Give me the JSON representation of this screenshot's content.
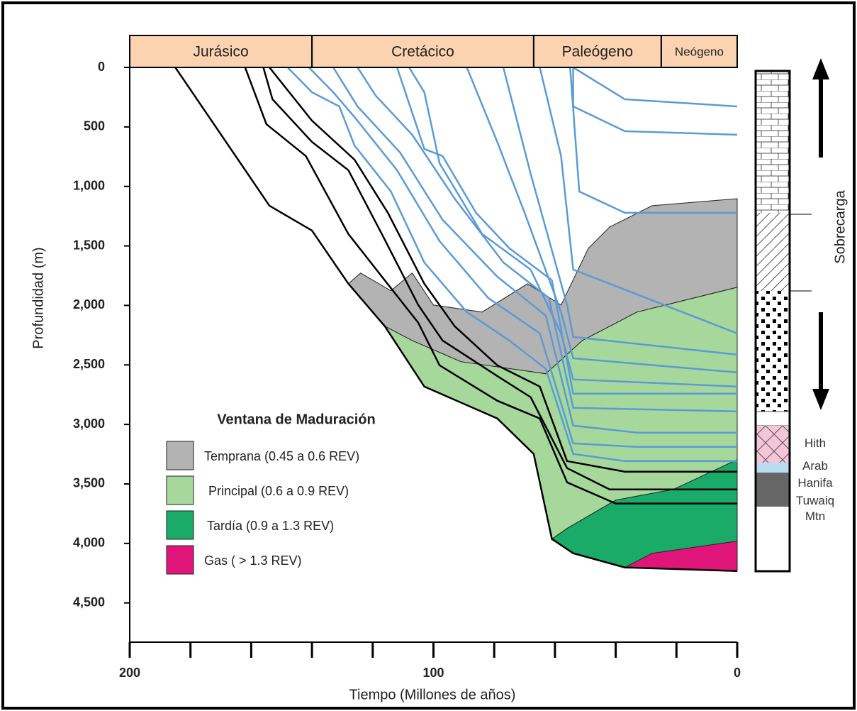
{
  "chart_data": {
    "type": "burial",
    "x_label": "Tiempo (Millones de años)",
    "y_label": "Profundidad (m)",
    "xlim": [
      200,
      0
    ],
    "xticks": [
      200,
      100,
      0
    ],
    "xminor_ticks": [
      180,
      160,
      140,
      120,
      80,
      60,
      40,
      20
    ],
    "ylim": [
      0,
      4830
    ],
    "yticks": [
      0,
      500,
      {
        "value": 1000,
        "label": "1,000"
      },
      {
        "value": 1500,
        "label": "1,500"
      },
      {
        "value": 2000,
        "label": "2,000"
      },
      {
        "value": 2500,
        "label": "2,500"
      },
      {
        "value": 3000,
        "label": "3,000"
      },
      {
        "value": 3500,
        "label": "3,500"
      },
      {
        "value": 4000,
        "label": "4,000"
      },
      {
        "value": 4500,
        "label": "4,500"
      }
    ],
    "periods": [
      {
        "name": "Jurásico",
        "start": 200,
        "end": 140
      },
      {
        "name": "Cretácico",
        "start": 140,
        "end": 67
      },
      {
        "name": "Paleógeno",
        "start": 67,
        "end": 25
      },
      {
        "name": "Neógeno",
        "start": 25,
        "end": 0
      }
    ],
    "regions": [
      {
        "name": "Temprana (0.45 a 0.6 REV)",
        "color": "#b3b3b3",
        "x": [
          128,
          124,
          114,
          107,
          100,
          84,
          69,
          58,
          49,
          42,
          28,
          0,
          0,
          33,
          51,
          63,
          91,
          107,
          116
        ],
        "y": [
          1818,
          1728,
          1877,
          1728,
          1997,
          2056,
          1818,
          1997,
          1520,
          1341,
          1162,
          1103,
          1848,
          2056,
          2295,
          2575,
          2473,
          2295,
          2175
        ]
      },
      {
        "name": "Principal (0.6 a 0.9 REV)",
        "color": "#a6d89b",
        "x": [
          107,
          91,
          63,
          51,
          33,
          0,
          0,
          21,
          40,
          56,
          61,
          67,
          79,
          103,
          116
        ],
        "y": [
          2295,
          2473,
          2575,
          2295,
          2056,
          1848,
          3308,
          3546,
          3636,
          3874,
          3963,
          3248,
          2950,
          2682,
          2175
        ]
      },
      {
        "name": "Tardía (0.9 a 1.3 REV)",
        "color": "#1aab68",
        "x": [
          61,
          56,
          40,
          21,
          0,
          0,
          19,
          28,
          37,
          54
        ],
        "y": [
          3963,
          3874,
          3636,
          3546,
          3296,
          3993,
          4053,
          4142,
          4202,
          4083
        ]
      },
      {
        "name": "Gas ( > 1.3 REV)",
        "color": "#e0157a",
        "x": [
          37,
          28,
          0,
          0
        ],
        "y": [
          4202,
          4083,
          3981,
          4232
        ]
      }
    ],
    "lines": [
      {
        "color": "#5b9bd5",
        "x": [
          148,
          140,
          131,
          126,
          114,
          103,
          89,
          75,
          63,
          54,
          37,
          0
        ],
        "y": [
          0,
          209,
          328,
          656,
          1043,
          1639,
          2056,
          2295,
          2533,
          3248,
          3308,
          3308
        ]
      },
      {
        "color": "#5b9bd5",
        "x": [
          141,
          133,
          126,
          112,
          98,
          82,
          65,
          54,
          33,
          0
        ],
        "y": [
          0,
          209,
          417,
          864,
          1460,
          1937,
          2235,
          3159,
          3189,
          3189
        ]
      },
      {
        "color": "#5b9bd5",
        "x": [
          133,
          125,
          111,
          97,
          79,
          63,
          54,
          33,
          0
        ],
        "y": [
          0,
          328,
          715,
          1281,
          1758,
          2086,
          3010,
          3069,
          3069
        ]
      },
      {
        "color": "#5b9bd5",
        "x": [
          125,
          119,
          107,
          93,
          77,
          62,
          54,
          0
        ],
        "y": [
          0,
          238,
          566,
          1103,
          1639,
          1937,
          2861,
          2891
        ]
      },
      {
        "color": "#5b9bd5",
        "x": [
          112,
          103,
          97,
          86,
          75,
          61,
          54,
          0
        ],
        "y": [
          0,
          685,
          745,
          1222,
          1520,
          1788,
          2742,
          2742
        ]
      },
      {
        "color": "#5b9bd5",
        "x": [
          108,
          103,
          98,
          84,
          68,
          58,
          54,
          0
        ],
        "y": [
          0,
          209,
          805,
          1400,
          1699,
          2235,
          2622,
          2682
        ]
      },
      {
        "color": "#5b9bd5",
        "x": [
          89,
          79,
          70,
          58,
          54,
          0
        ],
        "y": [
          0,
          626,
          1222,
          2056,
          2444,
          2563
        ]
      },
      {
        "color": "#5b9bd5",
        "x": [
          77,
          68,
          56,
          54,
          0
        ],
        "y": [
          0,
          894,
          1997,
          2265,
          2414
        ]
      },
      {
        "color": "#5b9bd5",
        "x": [
          65,
          58,
          54,
          0
        ],
        "y": [
          0,
          745,
          1699,
          2235
        ]
      },
      {
        "color": "#5b9bd5",
        "x": [
          55,
          52,
          37,
          0
        ],
        "y": [
          0,
          1043,
          1222,
          1222
        ]
      },
      {
        "color": "#5b9bd5",
        "x": [
          54,
          54,
          37,
          0
        ],
        "y": [
          0,
          328,
          536,
          566
        ]
      },
      {
        "color": "#5b9bd5",
        "x": [
          54,
          37,
          0
        ],
        "y": [
          0,
          268,
          328
        ]
      },
      {
        "color": "#000000",
        "x": [
          185,
          154,
          140,
          128,
          116,
          103,
          79,
          67,
          61,
          54,
          37,
          0
        ],
        "y": [
          0,
          1162,
          1371,
          1818,
          2175,
          2682,
          2950,
          3248,
          3963,
          4083,
          4202,
          4232
        ]
      },
      {
        "color": "#000000",
        "x": [
          162,
          155,
          142,
          128,
          117,
          105,
          98,
          79,
          65,
          56,
          40,
          0
        ],
        "y": [
          0,
          477,
          745,
          1400,
          1758,
          2146,
          2503,
          2801,
          2950,
          3487,
          3665,
          3665
        ]
      },
      {
        "color": "#000000",
        "x": [
          156,
          153,
          140,
          128,
          117,
          105,
          97,
          79,
          68,
          56,
          42,
          0
        ],
        "y": [
          0,
          268,
          626,
          864,
          1400,
          1997,
          2295,
          2593,
          2771,
          3367,
          3546,
          3546
        ]
      },
      {
        "color": "#000000",
        "x": [
          154,
          140,
          126,
          115,
          103,
          93,
          79,
          65,
          56,
          37,
          0
        ],
        "y": [
          0,
          447,
          775,
          1222,
          1818,
          2175,
          2503,
          2682,
          3308,
          3397,
          3397
        ]
      }
    ],
    "legend_title": "Ventana de Maduración",
    "column": {
      "label": "Sobrecarga",
      "formations": [
        "Hith",
        "Arab",
        "Hanifa",
        "Tuwaiq Mtn"
      ]
    }
  }
}
